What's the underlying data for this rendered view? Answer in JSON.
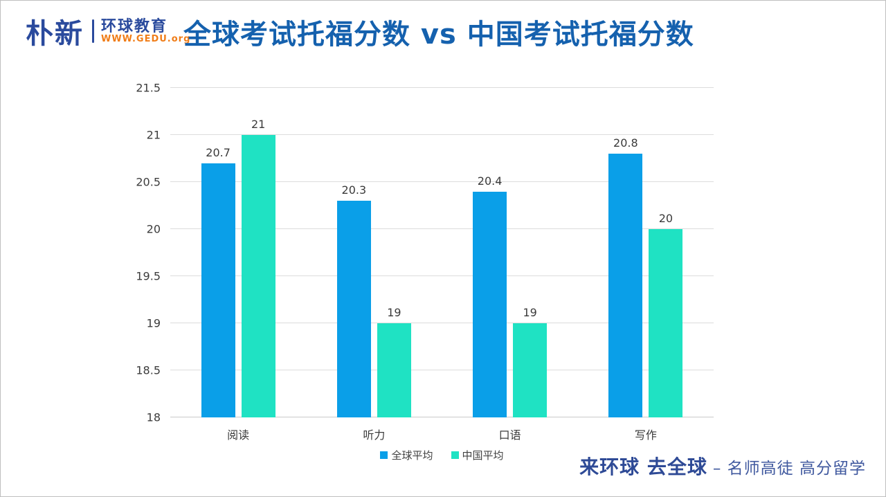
{
  "header": {
    "logo": {
      "brand": "朴新",
      "sub_brand": "环球教育",
      "website": "WWW.GEDU.org"
    }
  },
  "chart_data": {
    "type": "bar",
    "title": "全球考试托福分数 vs 中国考试托福分数",
    "categories": [
      "阅读",
      "听力",
      "口语",
      "写作"
    ],
    "series": [
      {
        "name": "全球平均",
        "color": "#0a9fe8",
        "values": [
          20.7,
          20.3,
          20.4,
          20.8
        ]
      },
      {
        "name": "中国平均",
        "color": "#1fe2c3",
        "values": [
          21,
          19,
          19,
          20
        ]
      }
    ],
    "ylim": [
      18,
      21.5
    ],
    "ytick_step": 0.5,
    "yticks": [
      "18",
      "18.5",
      "19",
      "19.5",
      "20",
      "20.5",
      "21",
      "21.5"
    ],
    "grid": true,
    "legend_position": "bottom",
    "value_labels": true
  },
  "footer": {
    "slogan_primary": "来环球 去全球",
    "slogan_secondary": "– 名师高徒 高分留学"
  },
  "colors": {
    "title_blue": "#1561ae",
    "logo_navy": "#2a4a9d",
    "logo_orange": "#f07d18",
    "bar_global": "#0a9fe8",
    "bar_china": "#1fe2c3",
    "gridline": "#dcdcdc",
    "axis_text": "#3a3a3a"
  }
}
